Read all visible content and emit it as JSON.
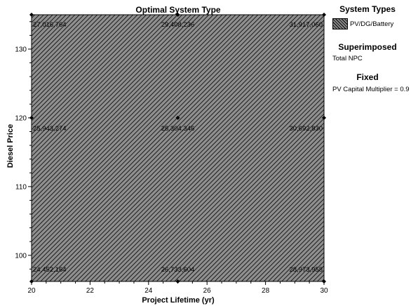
{
  "chart_data": {
    "type": "heatmap",
    "title": "Optimal System Type",
    "xlabel": "Project Lifetime (yr)",
    "ylabel": "Diesel Price",
    "xlim": [
      20,
      30
    ],
    "ylim": [
      96.2,
      135
    ],
    "xticks": [
      20,
      22,
      24,
      26,
      28,
      30
    ],
    "yticks": [
      100,
      110,
      120,
      130
    ],
    "fill_color": "#6b6b6b",
    "points": [
      {
        "x": 20,
        "y": 135,
        "label": "27,016,764"
      },
      {
        "x": 25,
        "y": 135,
        "label": "29,408,236"
      },
      {
        "x": 30,
        "y": 135,
        "label": "31,917,060"
      },
      {
        "x": 20,
        "y": 120,
        "label": "25,943,274"
      },
      {
        "x": 25,
        "y": 120,
        "label": "28,304,346"
      },
      {
        "x": 30,
        "y": 120,
        "label": "30,692,830"
      },
      {
        "x": 20,
        "y": 96.2,
        "label": "24,452,164"
      },
      {
        "x": 25,
        "y": 96.2,
        "label": "26,733,604"
      },
      {
        "x": 30,
        "y": 96.2,
        "label": "28,973,958"
      }
    ]
  },
  "sidebar": {
    "system_types_heading": "System Types",
    "legend_item": "PV/DG/Battery",
    "superimposed_heading": "Superimposed",
    "superimposed_value": "Total NPC",
    "fixed_heading": "Fixed",
    "fixed_value": "PV Capital Multiplier = 0.9"
  }
}
